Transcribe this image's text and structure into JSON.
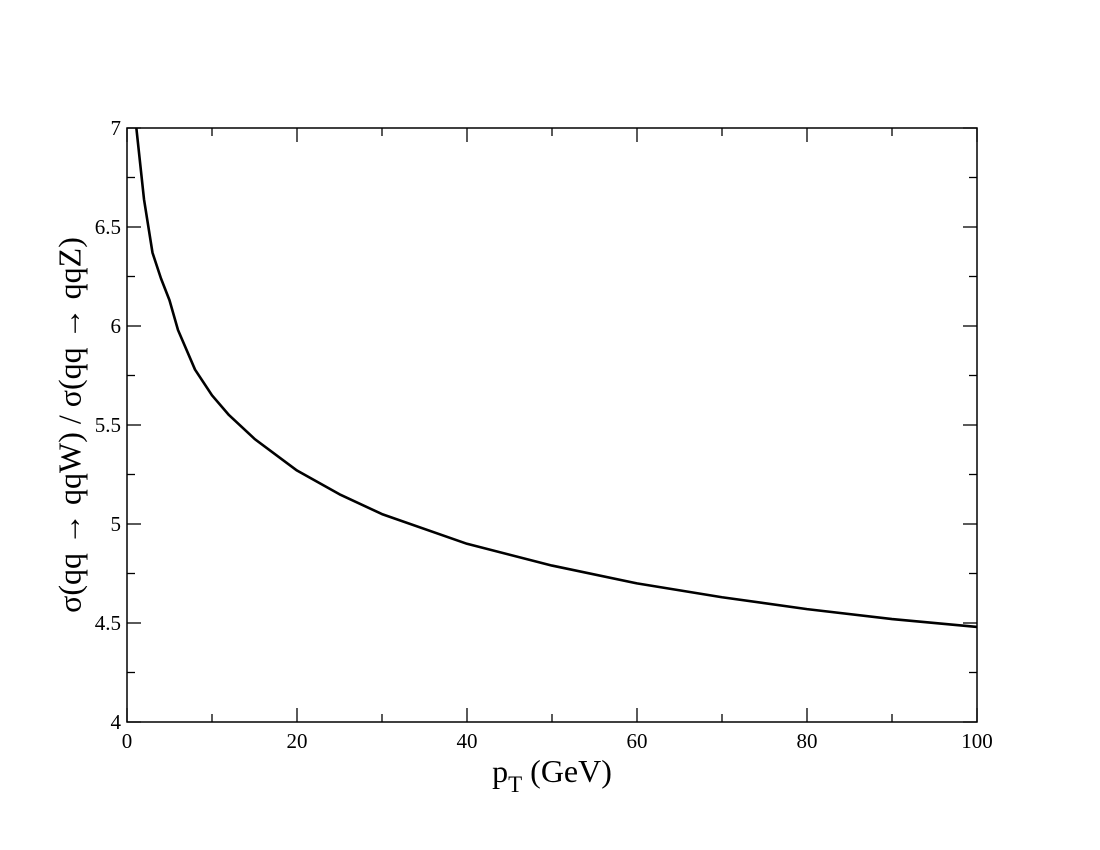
{
  "chart_data": {
    "type": "line",
    "x_label": [
      "p",
      "T",
      " (GeV)"
    ],
    "y_label": "σ(qq → qqW) / σ(qq → qqZ)",
    "x": [
      1.1,
      2,
      3,
      4,
      5,
      6,
      8,
      10,
      12,
      15,
      20,
      25,
      30,
      40,
      50,
      60,
      70,
      80,
      90,
      100
    ],
    "values": [
      7,
      6.64,
      6.37,
      6.24,
      6.13,
      5.98,
      5.78,
      5.65,
      5.55,
      5.43,
      5.27,
      5.15,
      5.05,
      4.9,
      4.79,
      4.7,
      4.63,
      4.57,
      4.52,
      4.48
    ],
    "color": "#000000",
    "xlim": [
      0,
      100
    ],
    "ylim": [
      4,
      7
    ],
    "xticks": [
      0,
      20,
      40,
      60,
      80,
      100
    ],
    "yticks": [
      4,
      4.5,
      5,
      5.5,
      6,
      6.5,
      7
    ],
    "xminorticks": [
      10,
      30,
      50,
      70,
      90
    ],
    "yminorticks": [
      4.25,
      4.75,
      5.25,
      5.75,
      6.25,
      6.75
    ]
  }
}
